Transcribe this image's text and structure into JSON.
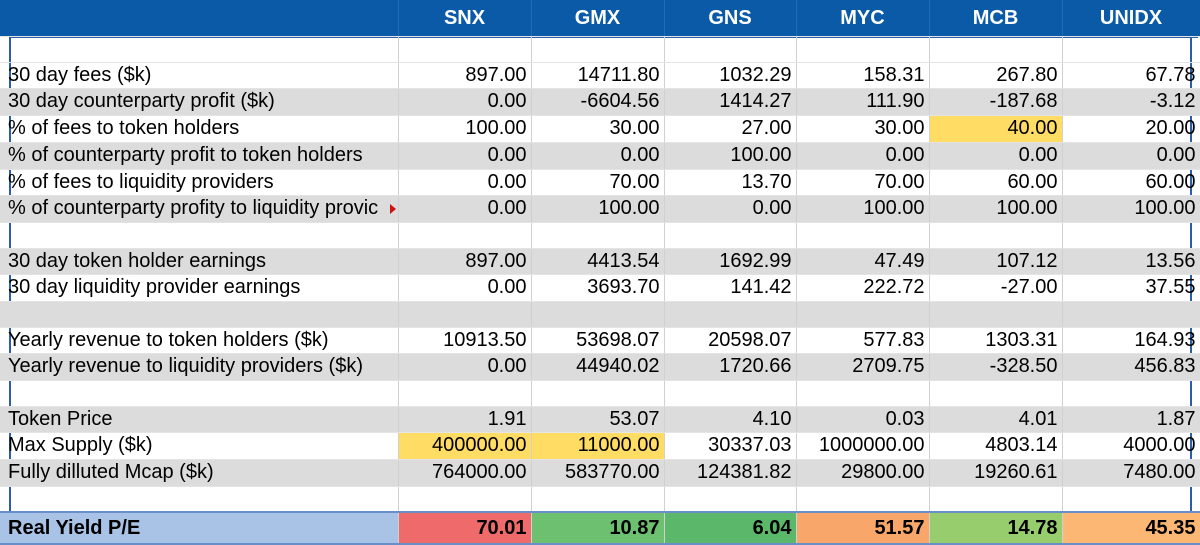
{
  "columns": [
    "SNX",
    "GMX",
    "GNS",
    "MYC",
    "MCB",
    "UNIDX"
  ],
  "rows": [
    {
      "label": "30 day fees ($k)",
      "values": [
        "897.00",
        "14711.80",
        "1032.29",
        "158.31",
        "267.80",
        "67.78"
      ]
    },
    {
      "label": "30 day counterparty profit ($k)",
      "values": [
        "0.00",
        "-6604.56",
        "1414.27",
        "111.90",
        "-187.68",
        "-3.12"
      ]
    },
    {
      "label": "% of fees to token holders",
      "values": [
        "100.00",
        "30.00",
        "27.00",
        "30.00",
        "40.00",
        "20.00"
      ]
    },
    {
      "label": "% of counterparty profit to token holders",
      "values": [
        "0.00",
        "0.00",
        "100.00",
        "0.00",
        "0.00",
        "0.00"
      ]
    },
    {
      "label": "% of fees to liquidity providers",
      "values": [
        "0.00",
        "70.00",
        "13.70",
        "70.00",
        "60.00",
        "60.00"
      ]
    },
    {
      "label": "% of counterparty profity to liquidity provic",
      "values": [
        "0.00",
        "100.00",
        "0.00",
        "100.00",
        "100.00",
        "100.00"
      ]
    },
    {
      "label": "30 day token holder earnings",
      "values": [
        "897.00",
        "4413.54",
        "1692.99",
        "47.49",
        "107.12",
        "13.56"
      ]
    },
    {
      "label": "30 day liquidity provider earnings",
      "values": [
        "0.00",
        "3693.70",
        "141.42",
        "222.72",
        "-27.00",
        "37.55"
      ]
    },
    {
      "label": "Yearly revenue to token holders ($k)",
      "values": [
        "10913.50",
        "53698.07",
        "20598.07",
        "577.83",
        "1303.31",
        "164.93"
      ]
    },
    {
      "label": "Yearly revenue to liquidity providers ($k)",
      "values": [
        "0.00",
        "44940.02",
        "1720.66",
        "2709.75",
        "-328.50",
        "456.83"
      ]
    },
    {
      "label": "Token Price",
      "values": [
        "1.91",
        "53.07",
        "4.10",
        "0.03",
        "4.01",
        "1.87"
      ]
    },
    {
      "label": "Max Supply ($k)",
      "values": [
        "400000.00",
        "11000.00",
        "30337.03",
        "1000000.00",
        "4803.14",
        "4000.00"
      ]
    },
    {
      "label": "Fully dilluted Mcap ($k)",
      "values": [
        "764000.00",
        "583770.00",
        "124381.82",
        "29800.00",
        "19260.61",
        "7480.00"
      ]
    }
  ],
  "pe_row": {
    "label": "Real Yield P/E",
    "values": [
      "70.01",
      "10.87",
      "6.04",
      "51.57",
      "14.78",
      "45.35"
    ],
    "colors": [
      "#ef6b6b",
      "#6cc070",
      "#5bb86a",
      "#f9a66a",
      "#98cd6e",
      "#fcb774"
    ]
  },
  "highlight_color": "#ffdc64"
}
